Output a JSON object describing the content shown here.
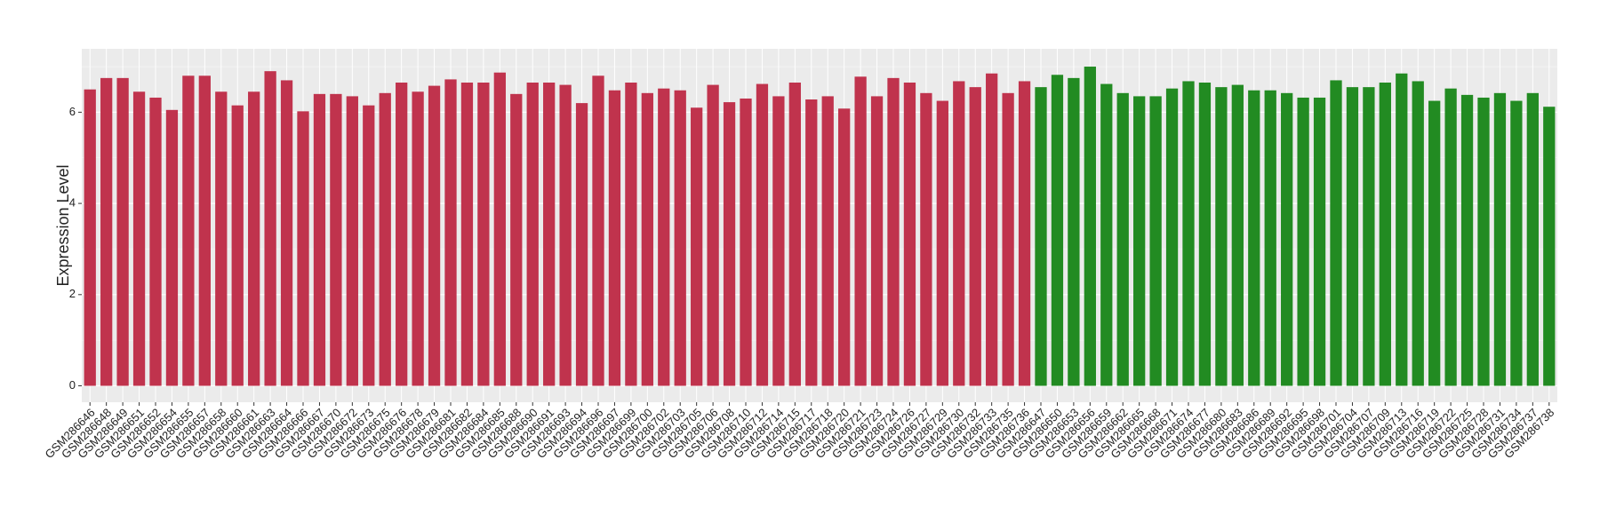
{
  "chart_data": {
    "type": "bar",
    "y_label": "Expression Level",
    "categories": [
      "GSM286646",
      "GSM286648",
      "GSM286649",
      "GSM286651",
      "GSM286652",
      "GSM286654",
      "GSM286655",
      "GSM286657",
      "GSM286658",
      "GSM286660",
      "GSM286661",
      "GSM286663",
      "GSM286664",
      "GSM286666",
      "GSM286667",
      "GSM286670",
      "GSM286672",
      "GSM286673",
      "GSM286675",
      "GSM286676",
      "GSM286678",
      "GSM286679",
      "GSM286681",
      "GSM286682",
      "GSM286684",
      "GSM286685",
      "GSM286688",
      "GSM286690",
      "GSM286691",
      "GSM286693",
      "GSM286694",
      "GSM286696",
      "GSM286697",
      "GSM286699",
      "GSM286700",
      "GSM286702",
      "GSM286703",
      "GSM286705",
      "GSM286706",
      "GSM286708",
      "GSM286710",
      "GSM286712",
      "GSM286714",
      "GSM286715",
      "GSM286717",
      "GSM286718",
      "GSM286720",
      "GSM286721",
      "GSM286723",
      "GSM286724",
      "GSM286726",
      "GSM286727",
      "GSM286729",
      "GSM286730",
      "GSM286732",
      "GSM286733",
      "GSM286735",
      "GSM286736",
      "GSM286647",
      "GSM286650",
      "GSM286653",
      "GSM286656",
      "GSM286659",
      "GSM286662",
      "GSM286665",
      "GSM286668",
      "GSM286671",
      "GSM286674",
      "GSM286677",
      "GSM286680",
      "GSM286683",
      "GSM286686",
      "GSM286689",
      "GSM286692",
      "GSM286695",
      "GSM286698",
      "GSM286701",
      "GSM286704",
      "GSM286707",
      "GSM286709",
      "GSM286713",
      "GSM286716",
      "GSM286719",
      "GSM286722",
      "GSM286725",
      "GSM286728",
      "GSM286731",
      "GSM286734",
      "GSM286737",
      "GSM286738"
    ],
    "values": [
      6.5,
      6.75,
      6.75,
      6.45,
      6.32,
      6.05,
      6.8,
      6.8,
      6.45,
      6.15,
      6.45,
      6.9,
      6.7,
      6.02,
      6.4,
      6.4,
      6.35,
      6.15,
      6.42,
      6.65,
      6.45,
      6.58,
      6.72,
      6.65,
      6.65,
      6.87,
      6.4,
      6.65,
      6.65,
      6.6,
      6.2,
      6.8,
      6.48,
      6.65,
      6.42,
      6.52,
      6.48,
      6.1,
      6.6,
      6.22,
      6.3,
      6.62,
      6.35,
      6.65,
      6.28,
      6.35,
      6.08,
      6.78,
      6.35,
      6.75,
      6.65,
      6.42,
      6.25,
      6.68,
      6.55,
      6.85,
      6.42,
      6.68,
      6.55,
      6.82,
      6.75,
      7.0,
      6.62,
      6.42,
      6.35,
      6.35,
      6.52,
      6.68,
      6.65,
      6.55,
      6.6,
      6.48,
      6.48,
      6.42,
      6.32,
      6.32,
      6.7,
      6.55,
      6.55,
      6.65,
      6.85,
      6.68,
      6.25,
      6.52,
      6.38,
      6.32,
      6.42,
      6.25,
      6.42,
      6.12
    ],
    "colors": [
      "#c0334d",
      "#c0334d",
      "#c0334d",
      "#c0334d",
      "#c0334d",
      "#c0334d",
      "#c0334d",
      "#c0334d",
      "#c0334d",
      "#c0334d",
      "#c0334d",
      "#c0334d",
      "#c0334d",
      "#c0334d",
      "#c0334d",
      "#c0334d",
      "#c0334d",
      "#c0334d",
      "#c0334d",
      "#c0334d",
      "#c0334d",
      "#c0334d",
      "#c0334d",
      "#c0334d",
      "#c0334d",
      "#c0334d",
      "#c0334d",
      "#c0334d",
      "#c0334d",
      "#c0334d",
      "#c0334d",
      "#c0334d",
      "#c0334d",
      "#c0334d",
      "#c0334d",
      "#c0334d",
      "#c0334d",
      "#c0334d",
      "#c0334d",
      "#c0334d",
      "#c0334d",
      "#c0334d",
      "#c0334d",
      "#c0334d",
      "#c0334d",
      "#c0334d",
      "#c0334d",
      "#c0334d",
      "#c0334d",
      "#c0334d",
      "#c0334d",
      "#c0334d",
      "#c0334d",
      "#c0334d",
      "#c0334d",
      "#c0334d",
      "#c0334d",
      "#c0334d",
      "#228b22",
      "#228b22",
      "#228b22",
      "#228b22",
      "#228b22",
      "#228b22",
      "#228b22",
      "#228b22",
      "#228b22",
      "#228b22",
      "#228b22",
      "#228b22",
      "#228b22",
      "#228b22",
      "#228b22",
      "#228b22",
      "#228b22",
      "#228b22",
      "#228b22",
      "#228b22",
      "#228b22",
      "#228b22",
      "#228b22",
      "#228b22",
      "#228b22",
      "#228b22",
      "#228b22",
      "#228b22",
      "#228b22",
      "#228b22",
      "#228b22",
      "#228b22"
    ],
    "ylim": [
      -0.36,
      7.39
    ],
    "yticks": [
      0,
      2,
      4,
      6
    ],
    "minor_yticks": [
      1,
      3,
      5,
      7
    ],
    "grid": true
  }
}
